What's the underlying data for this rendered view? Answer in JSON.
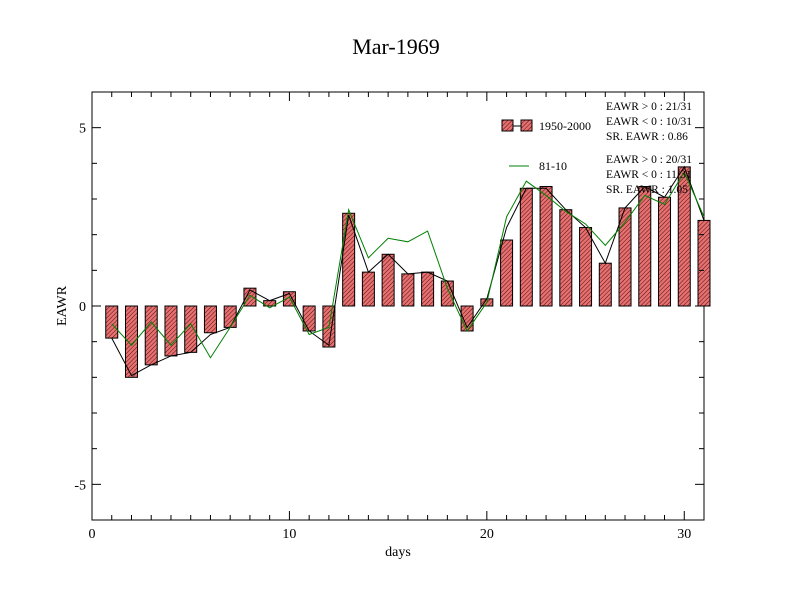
{
  "chart_data": {
    "type": "bar",
    "title": "Mar-1969",
    "xlabel": "days",
    "ylabel": "EAWR",
    "xlim": [
      0,
      31
    ],
    "ylim": [
      -6,
      6
    ],
    "x_ticks": [
      0,
      10,
      20,
      30
    ],
    "y_ticks": [
      -5,
      0,
      5
    ],
    "x": [
      1,
      2,
      3,
      4,
      5,
      6,
      7,
      8,
      9,
      10,
      11,
      12,
      13,
      14,
      15,
      16,
      17,
      18,
      19,
      20,
      21,
      22,
      23,
      24,
      25,
      26,
      27,
      28,
      29,
      30,
      31
    ],
    "series": [
      {
        "name": "1950-2000",
        "kind": "bar",
        "values": [
          -0.9,
          -2.0,
          -1.65,
          -1.4,
          -1.3,
          -0.75,
          -0.6,
          0.5,
          0.15,
          0.4,
          -0.7,
          -1.15,
          2.6,
          0.95,
          1.45,
          0.9,
          0.95,
          0.7,
          -0.7,
          0.2,
          1.85,
          3.3,
          3.35,
          2.7,
          2.2,
          1.2,
          2.75,
          3.35,
          3.05,
          3.9,
          2.4
        ]
      },
      {
        "kind": "line",
        "values": [
          -0.9,
          -1.95,
          -1.65,
          -1.4,
          -1.3,
          -0.8,
          -0.6,
          0.45,
          0.15,
          0.35,
          -0.7,
          -1.1,
          2.55,
          0.95,
          1.45,
          0.9,
          0.95,
          0.7,
          -0.6,
          0.2,
          2.2,
          3.3,
          3.3,
          2.7,
          2.2,
          1.2,
          2.75,
          3.35,
          3.05,
          3.9,
          2.4
        ],
        "color": "#000000"
      },
      {
        "name": "81-10",
        "kind": "line",
        "values": [
          -0.5,
          -1.1,
          -0.45,
          -1.1,
          -0.5,
          -1.45,
          -0.6,
          0.3,
          -0.05,
          0.25,
          -0.8,
          -0.6,
          2.7,
          1.35,
          1.9,
          1.8,
          2.1,
          0.5,
          -0.7,
          0.1,
          2.5,
          3.5,
          3.1,
          2.65,
          2.3,
          1.7,
          2.35,
          3.1,
          2.85,
          3.75,
          2.5
        ],
        "color": "#008000"
      }
    ],
    "bar_fill": "#e06464",
    "legend_position": "top-right"
  },
  "stats": {
    "s1": {
      "pos": "EAWR > 0 : 21/31",
      "neg": "EAWR < 0 : 10/31",
      "sr": "SR. EAWR :  0.86"
    },
    "s2": {
      "pos": "EAWR > 0 : 20/31",
      "neg": "EAWR < 0 : 11/31",
      "sr": "SR. EAWR :  1.05"
    }
  }
}
